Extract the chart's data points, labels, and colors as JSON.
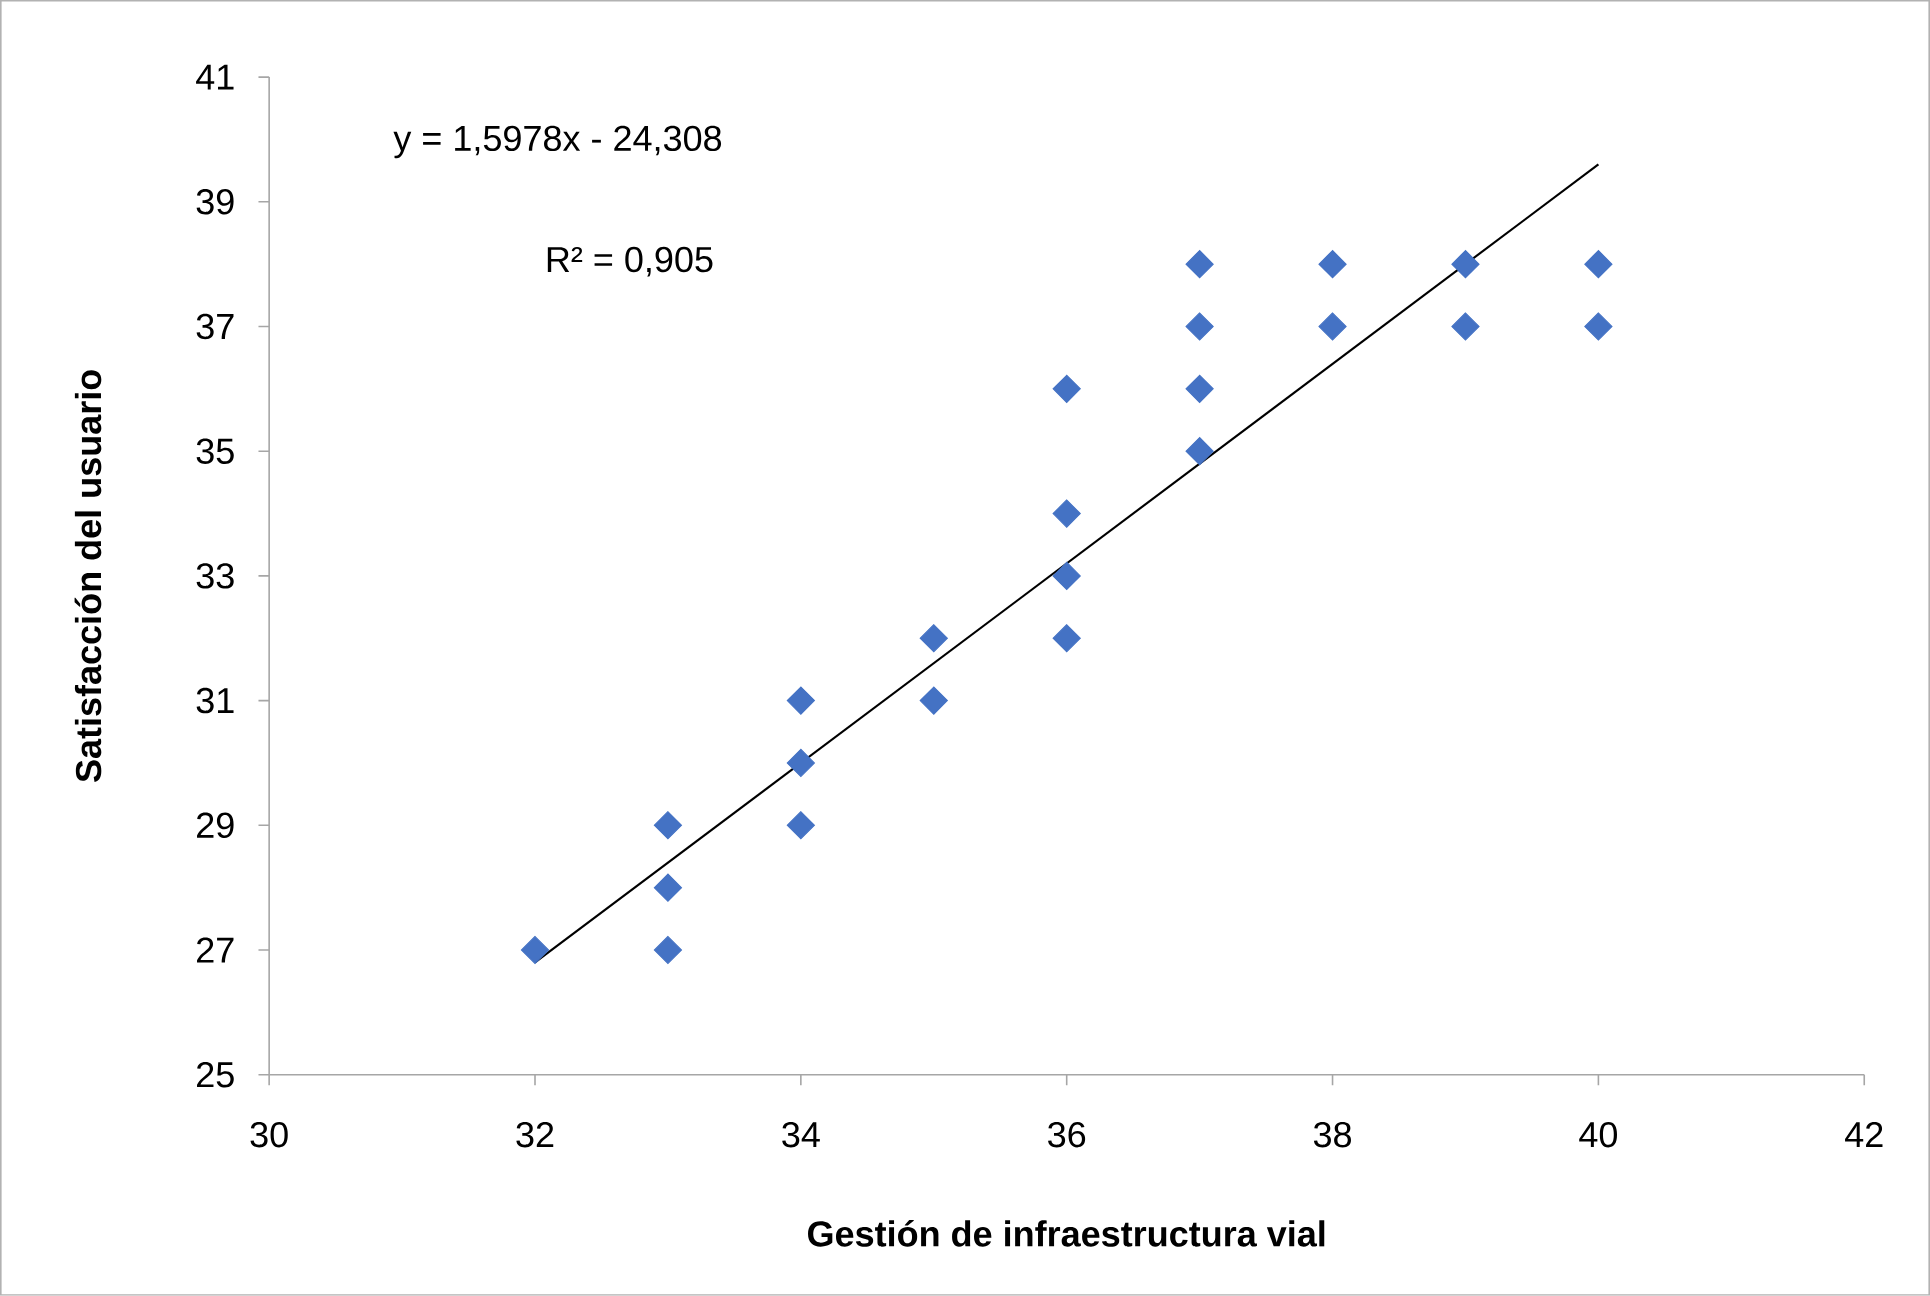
{
  "chart_data": {
    "type": "scatter",
    "xlabel": "Gestión de infraestructura vial",
    "ylabel": "Satisfacción del usuario",
    "xlim": [
      30,
      42
    ],
    "xticks": [
      30,
      32,
      34,
      36,
      38,
      40,
      42
    ],
    "ylim": [
      25,
      41
    ],
    "yticks": [
      25,
      27,
      29,
      31,
      33,
      35,
      37,
      39,
      41
    ],
    "series": [
      {
        "marker": "diamond",
        "color": "#4472c4",
        "x": [
          32,
          33,
          33,
          33,
          34,
          34,
          34,
          35,
          35,
          36,
          36,
          36,
          36,
          37,
          37,
          37,
          37,
          38,
          38,
          39,
          39,
          40,
          40
        ],
        "values": [
          27,
          29,
          28,
          27,
          31,
          30,
          29,
          32,
          31,
          36,
          34,
          33,
          32,
          38,
          37,
          36,
          35,
          38,
          37,
          38,
          37,
          38,
          37
        ]
      },
      {
        "type": "line",
        "marker": "none",
        "color": "#000000",
        "x": [
          32,
          40
        ],
        "values": [
          26.8,
          39.6
        ]
      }
    ],
    "annotations": [
      "y = 1,5978x - 24,308",
      "R² = 0,905"
    ]
  }
}
